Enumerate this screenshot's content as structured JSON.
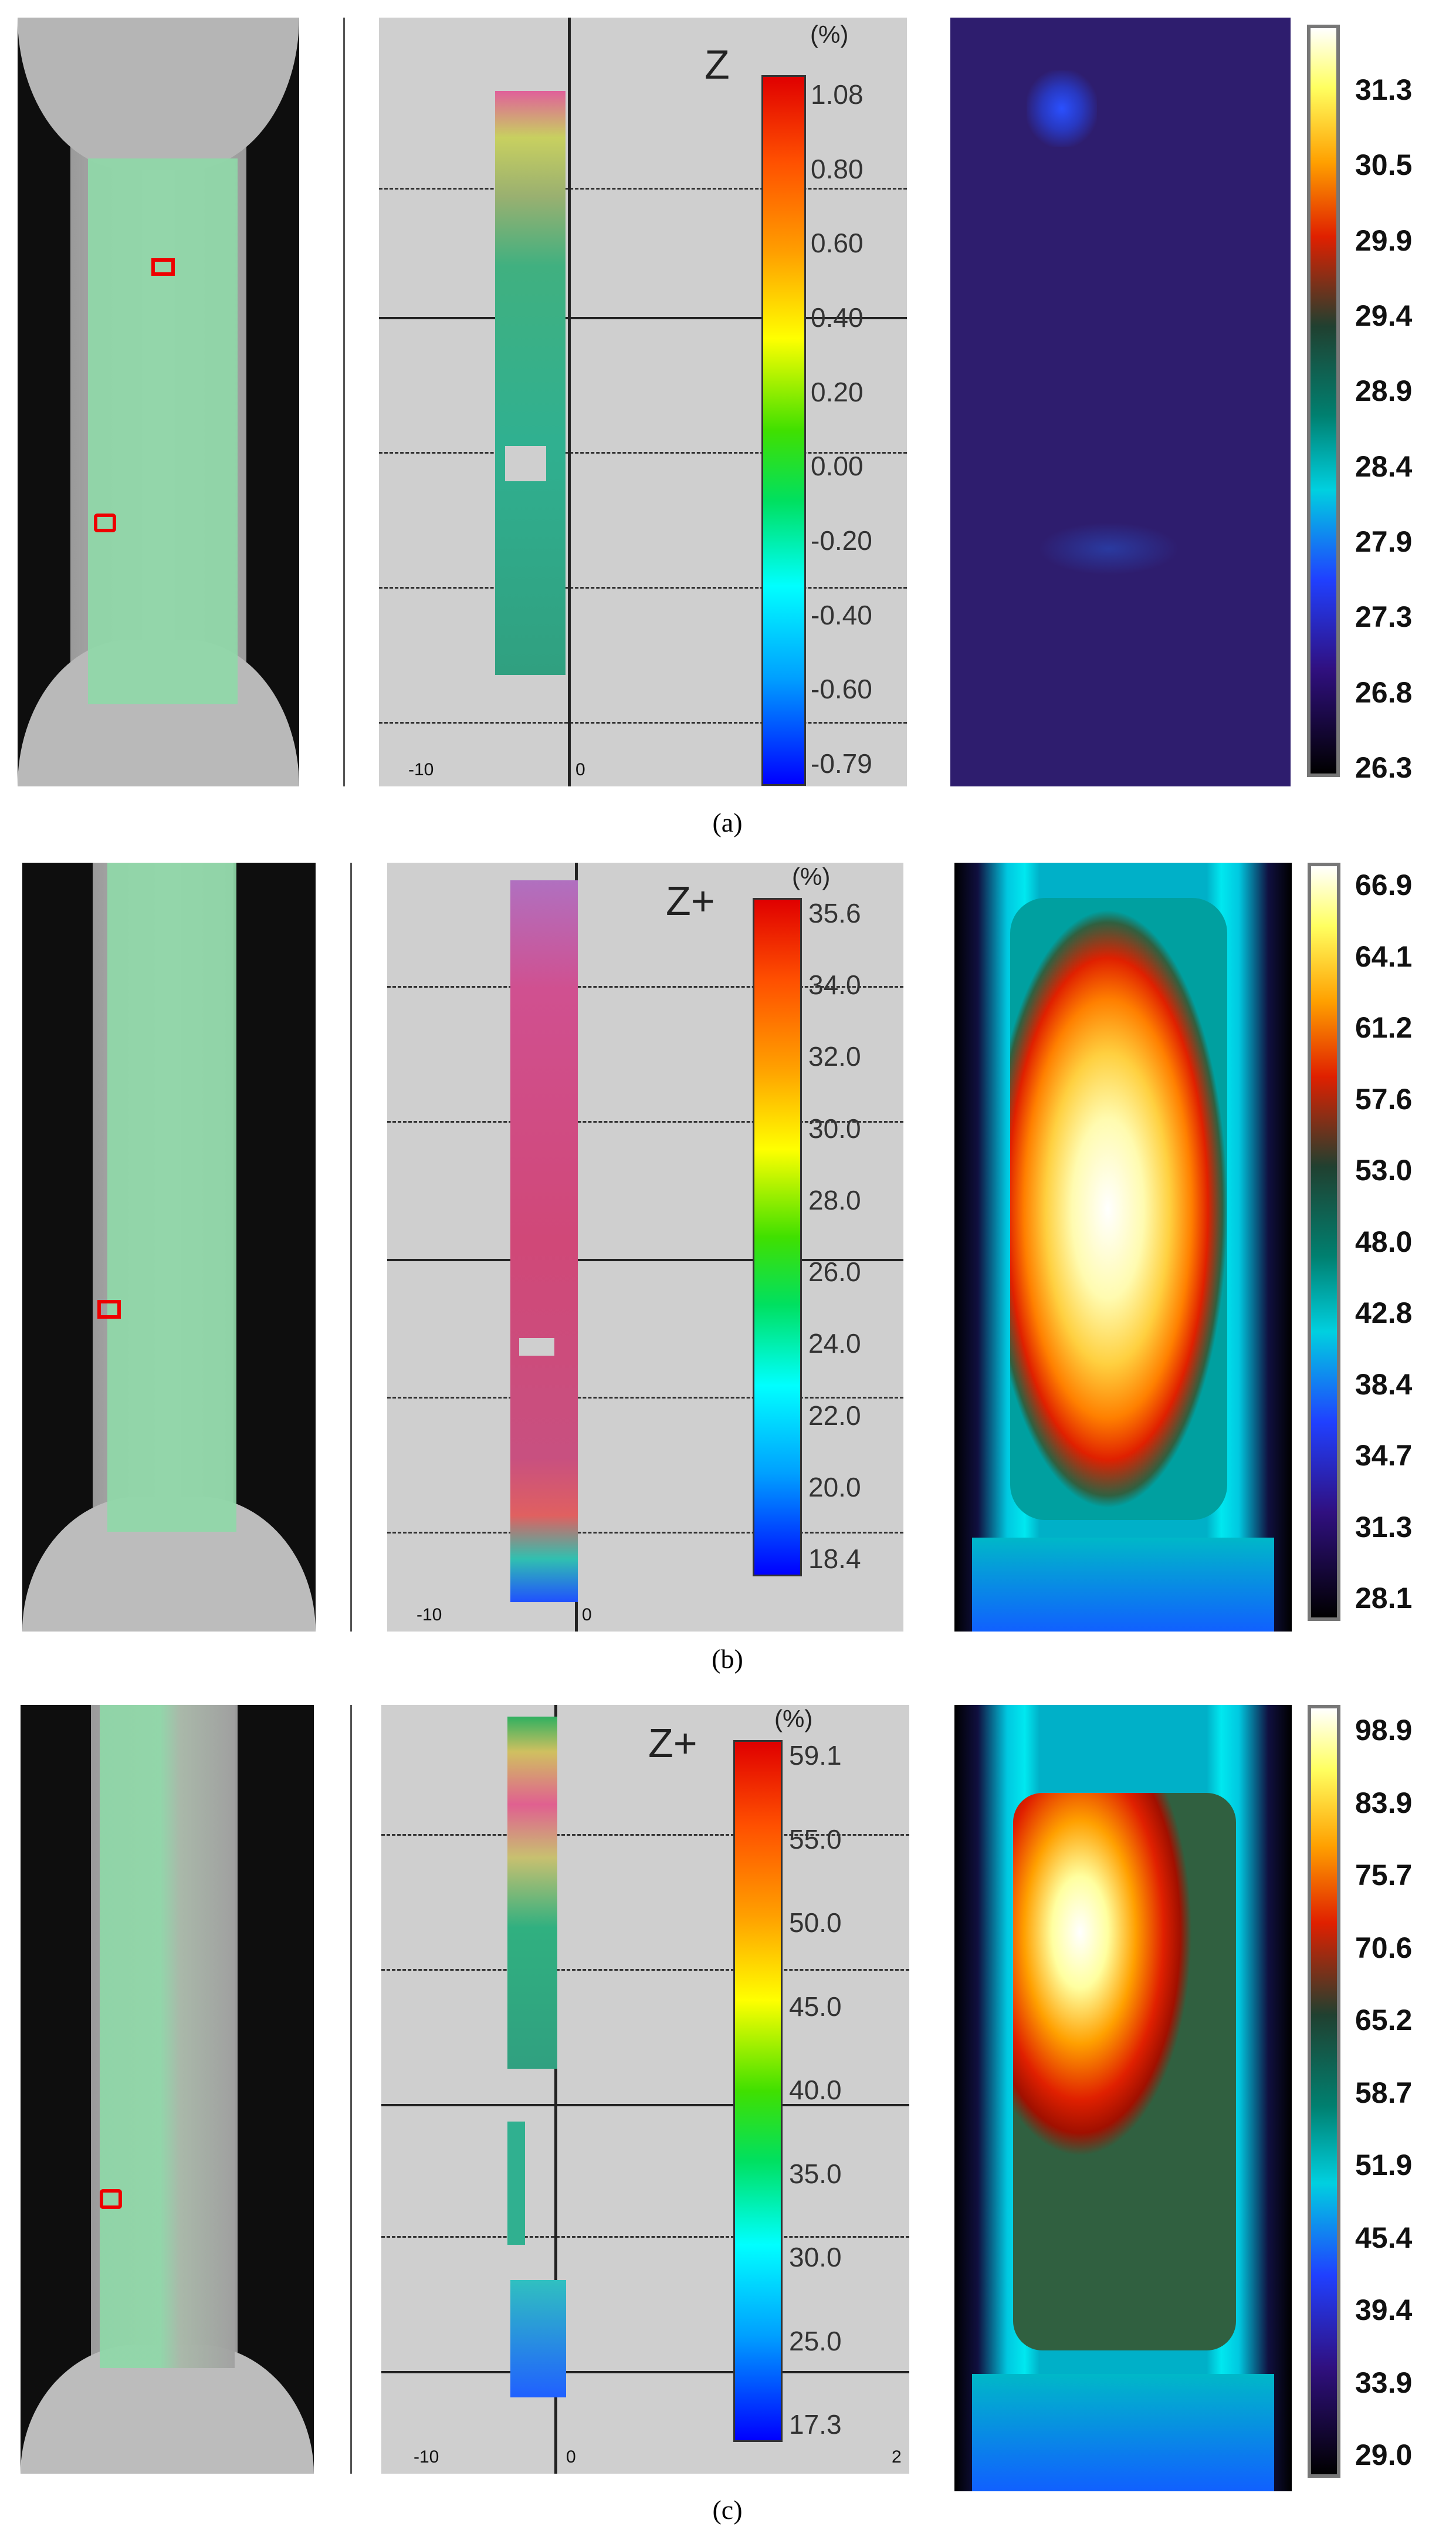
{
  "panels": [
    {
      "caption": "(a)",
      "dic_axis": {
        "z_label": "Z",
        "unit": "(%)",
        "x_ticks": [
          "-10",
          "0"
        ],
        "corner": "80"
      },
      "strain_scale": [
        "1.08",
        "0.80",
        "0.60",
        "0.40",
        "0.20",
        "0.00",
        "-0.20",
        "-0.40",
        "-0.60",
        "-0.79"
      ],
      "temp_scale": [
        "31.3",
        "30.5",
        "29.9",
        "29.4",
        "28.9",
        "28.4",
        "27.9",
        "27.3",
        "26.8",
        "26.3"
      ]
    },
    {
      "caption": "(b)",
      "dic_axis": {
        "z_label": "Z+",
        "unit": "(%)",
        "x_ticks": [
          "-10",
          "0"
        ],
        "corner": "80"
      },
      "strain_scale": [
        "35.6",
        "34.0",
        "32.0",
        "30.0",
        "28.0",
        "26.0",
        "24.0",
        "22.0",
        "20.0",
        "18.4"
      ],
      "temp_scale": [
        "66.9",
        "64.1",
        "61.2",
        "57.6",
        "53.0",
        "48.0",
        "42.8",
        "38.4",
        "34.7",
        "31.3",
        "28.1"
      ]
    },
    {
      "caption": "(c)",
      "dic_axis": {
        "z_label": "Z+",
        "unit": "(%)",
        "x_ticks": [
          "-10",
          "0",
          "2"
        ],
        "corner": "80"
      },
      "strain_scale": [
        "59.1",
        "55.0",
        "50.0",
        "45.0",
        "40.0",
        "35.0",
        "30.0",
        "25.0",
        "17.3"
      ],
      "temp_scale": [
        "98.9",
        "83.9",
        "75.7",
        "70.6",
        "65.2",
        "58.7",
        "51.9",
        "45.4",
        "39.4",
        "33.9",
        "29.0"
      ]
    }
  ],
  "colors": {
    "jet": [
      "#0000ff",
      "#00aaff",
      "#00ffff",
      "#00ff80",
      "#40e000",
      "#ffff00",
      "#ffa000",
      "#ff3000",
      "#e00000"
    ],
    "ironbow": [
      "#000000",
      "#2a1a6a",
      "#1a3aff",
      "#00e0ff",
      "#008060",
      "#b01010",
      "#ff3000",
      "#ffff40",
      "#ffffff"
    ]
  }
}
